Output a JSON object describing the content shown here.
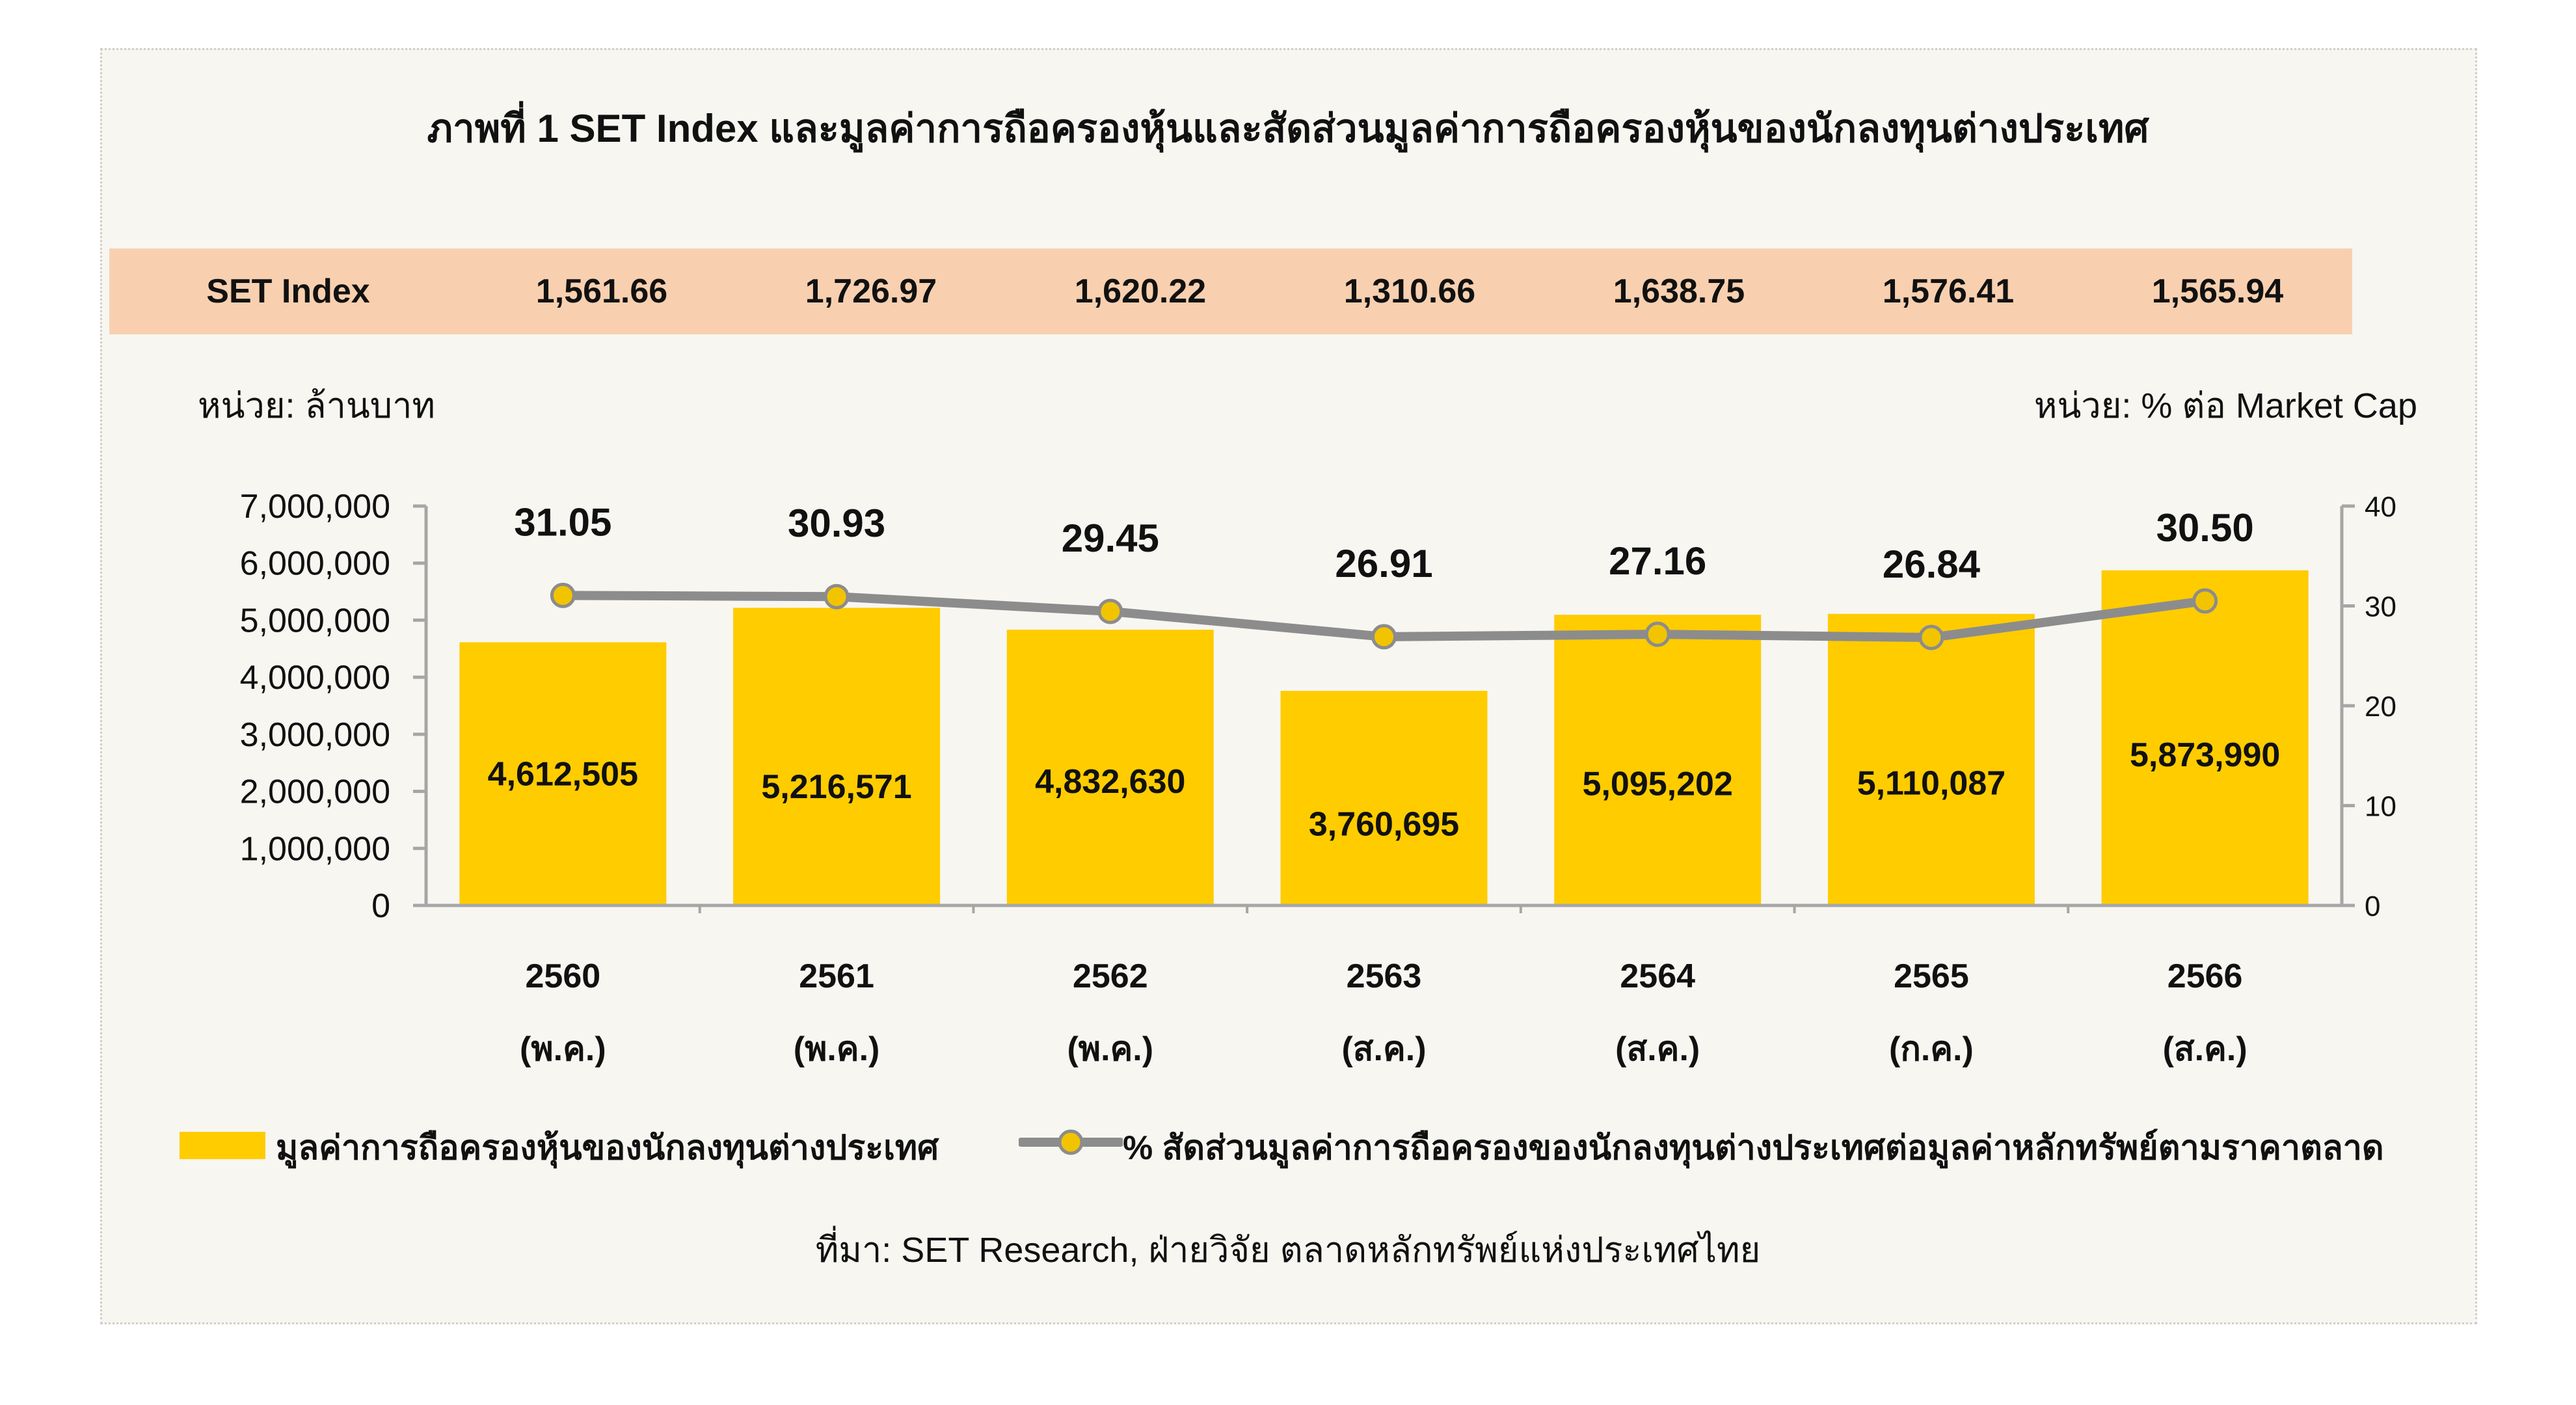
{
  "title": "ภาพที่ 1 SET Index และมูลค่าการถือครองหุ้นและสัดส่วนมูลค่าการถือครองหุ้นของนักลงทุนต่างประเทศ",
  "set_index": {
    "label": "SET Index",
    "values": [
      "1,561.66",
      "1,726.97",
      "1,620.22",
      "1,310.66",
      "1,638.75",
      "1,576.41",
      "1,565.94"
    ]
  },
  "unit_left": "หน่วย: ล้านบาท",
  "unit_right": "หน่วย: % ต่อ Market Cap",
  "legend": {
    "bar_label": "มูลค่าการถือครองหุ้นของนักลงทุนต่างประเทศ",
    "line_label": "% สัดส่วนมูลค่าการถือครองของนักลงทุนต่างประเทศต่อมูลค่าหลักทรัพย์ตามราคาตลาด"
  },
  "source": "ที่มา: SET Research, ฝ่ายวิจัย ตลาดหลักทรัพย์แห่งประเทศไทย",
  "colors": {
    "bar": "#ffcc00",
    "line": "#8c8c8c",
    "marker": "#f2c400",
    "strip": "#f8d0b0",
    "card": "#f7f6f1"
  },
  "chart_data": {
    "type": "bar",
    "categories": [
      "2560",
      "2561",
      "2562",
      "2563",
      "2564",
      "2565",
      "2566"
    ],
    "category_sublabels": [
      "(พ.ค.)",
      "(พ.ค.)",
      "(พ.ค.)",
      "(ส.ค.)",
      "(ส.ค.)",
      "(ก.ค.)",
      "(ส.ค.)"
    ],
    "series": [
      {
        "name": "มูลค่าการถือครองหุ้นของนักลงทุนต่างประเทศ",
        "type": "bar",
        "axis": "left",
        "values": [
          4612505,
          5216571,
          4832630,
          3760695,
          5095202,
          5110087,
          5873990
        ],
        "labels": [
          "4,612,505",
          "5,216,571",
          "4,832,630",
          "3,760,695",
          "5,095,202",
          "5,110,087",
          "5,873,990"
        ]
      },
      {
        "name": "% สัดส่วนมูลค่าการถือครองของนักลงทุนต่างประเทศต่อมูลค่าหลักทรัพย์ตามราคาตลาด",
        "type": "line",
        "axis": "right",
        "values": [
          31.05,
          30.93,
          29.45,
          26.91,
          27.16,
          26.84,
          30.5
        ],
        "labels": [
          "31.05",
          "30.93",
          "29.45",
          "26.91",
          "27.16",
          "26.84",
          "30.50"
        ]
      }
    ],
    "y_left": {
      "lim": [
        0,
        7000000
      ],
      "ticks": [
        "0",
        "1,000,000",
        "2,000,000",
        "3,000,000",
        "4,000,000",
        "5,000,000",
        "6,000,000",
        "7,000,000"
      ]
    },
    "y_right": {
      "lim": [
        0,
        40
      ],
      "ticks": [
        "0",
        "10",
        "20",
        "30",
        "40"
      ]
    },
    "grid": false
  }
}
